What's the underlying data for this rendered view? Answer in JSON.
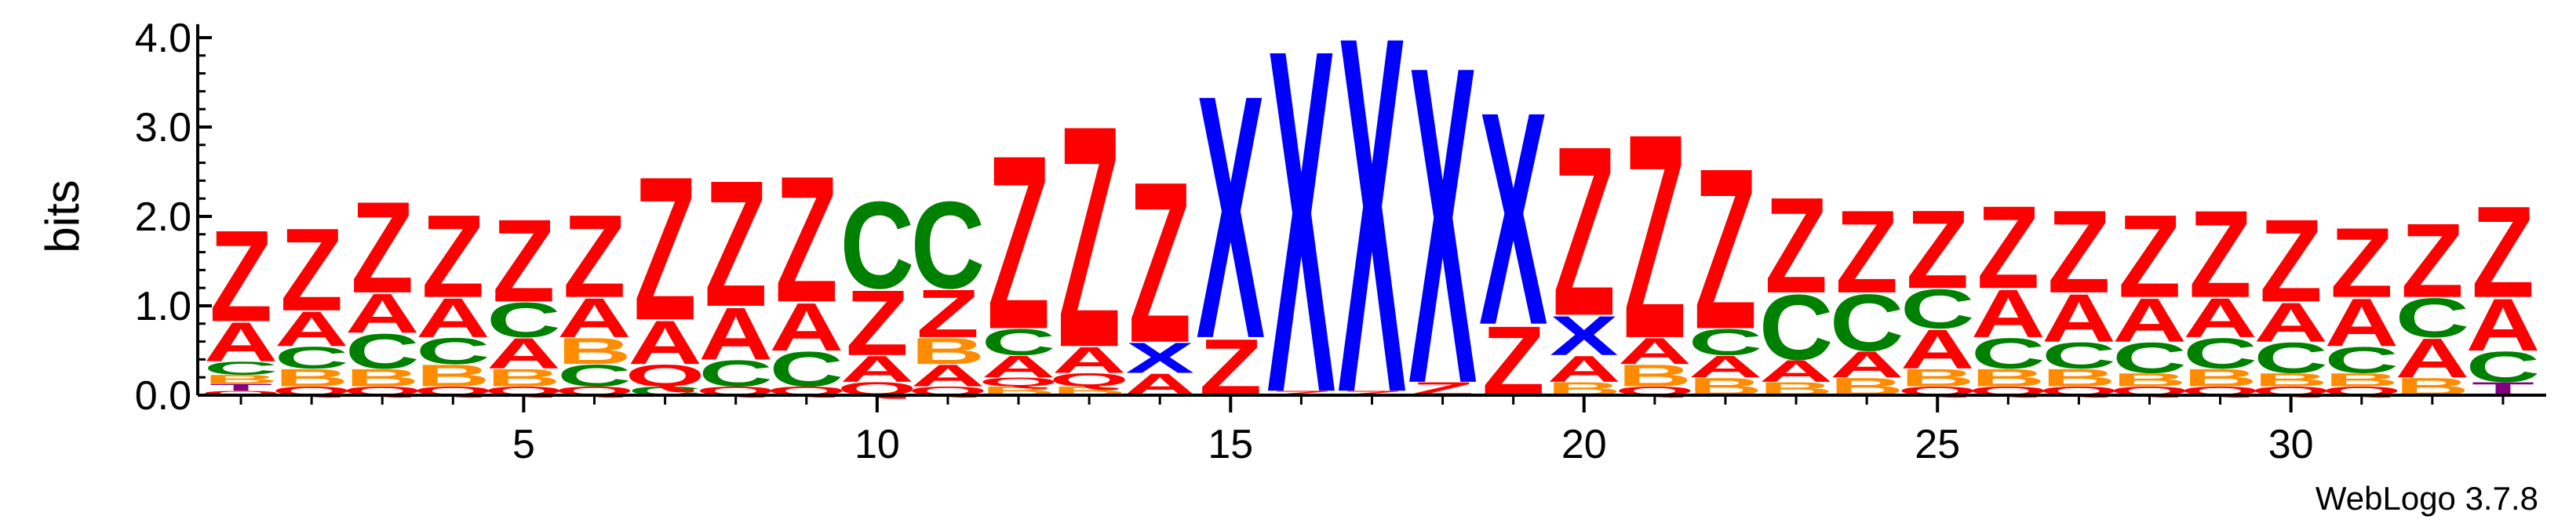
{
  "colors": {
    "A": "#ff0000",
    "Z": "#ff0000",
    "X": "#0000ff",
    "C": "#008000",
    "B": "#ff8c00",
    "Q": "#ff0000",
    "T": "#800080",
    "G": "#ff8c00",
    "axis": "#000000"
  },
  "chart_data": {
    "type": "sequence-logo",
    "title": "",
    "xlabel": "",
    "ylabel": "bits",
    "ylim": [
      0,
      4.0
    ],
    "xlim": [
      1,
      33
    ],
    "yticks": [
      0.0,
      1.0,
      2.0,
      3.0,
      4.0
    ],
    "ytick_labels": [
      "0.0",
      "1.0",
      "2.0",
      "3.0",
      "4.0"
    ],
    "xticks": [
      5,
      10,
      15,
      20,
      25,
      30
    ],
    "xtick_labels": [
      "5",
      "10",
      "15",
      "20",
      "25",
      "30"
    ],
    "credit": "WebLogo 3.7.8",
    "positions": [
      {
        "pos": 1,
        "stack": [
          [
            "Q",
            0.05
          ],
          [
            "T",
            0.08
          ],
          [
            "B",
            0.1
          ],
          [
            "C",
            0.15
          ],
          [
            "A",
            0.45
          ],
          [
            "Z",
            1.05
          ]
        ]
      },
      {
        "pos": 2,
        "stack": [
          [
            "Q",
            0.1
          ],
          [
            "B",
            0.2
          ],
          [
            "C",
            0.25
          ],
          [
            "A",
            0.4
          ],
          [
            "Z",
            0.95
          ]
        ]
      },
      {
        "pos": 3,
        "stack": [
          [
            "Q",
            0.1
          ],
          [
            "B",
            0.2
          ],
          [
            "C",
            0.4
          ],
          [
            "A",
            0.45
          ],
          [
            "Z",
            1.05
          ]
        ]
      },
      {
        "pos": 4,
        "stack": [
          [
            "Q",
            0.1
          ],
          [
            "B",
            0.25
          ],
          [
            "C",
            0.3
          ],
          [
            "A",
            0.45
          ],
          [
            "Z",
            0.95
          ]
        ]
      },
      {
        "pos": 5,
        "stack": [
          [
            "Q",
            0.1
          ],
          [
            "B",
            0.2
          ],
          [
            "A",
            0.35
          ],
          [
            "C",
            0.4
          ],
          [
            "Z",
            0.95
          ]
        ]
      },
      {
        "pos": 6,
        "stack": [
          [
            "Q",
            0.1
          ],
          [
            "C",
            0.25
          ],
          [
            "B",
            0.3
          ],
          [
            "A",
            0.45
          ],
          [
            "Z",
            0.95
          ]
        ]
      },
      {
        "pos": 7,
        "stack": [
          [
            "C",
            0.1
          ],
          [
            "Q",
            0.25
          ],
          [
            "A",
            0.5
          ],
          [
            "Z",
            1.65
          ]
        ]
      },
      {
        "pos": 8,
        "stack": [
          [
            "Q",
            0.1
          ],
          [
            "C",
            0.3
          ],
          [
            "A",
            0.6
          ],
          [
            "Z",
            1.45
          ]
        ]
      },
      {
        "pos": 9,
        "stack": [
          [
            "Q",
            0.1
          ],
          [
            "C",
            0.4
          ],
          [
            "A",
            0.55
          ],
          [
            "Z",
            1.45
          ]
        ]
      },
      {
        "pos": 10,
        "stack": [
          [
            "Q",
            0.15
          ],
          [
            "A",
            0.3
          ],
          [
            "Z",
            0.75
          ],
          [
            "C",
            1.0
          ]
        ]
      },
      {
        "pos": 11,
        "stack": [
          [
            "Q",
            0.1
          ],
          [
            "A",
            0.25
          ],
          [
            "B",
            0.3
          ],
          [
            "Z",
            0.55
          ],
          [
            "C",
            1.0
          ]
        ]
      },
      {
        "pos": 12,
        "stack": [
          [
            "B",
            0.1
          ],
          [
            "Q",
            0.1
          ],
          [
            "A",
            0.25
          ],
          [
            "C",
            0.3
          ],
          [
            "Z",
            2.0
          ]
        ]
      },
      {
        "pos": 13,
        "stack": [
          [
            "B",
            0.1
          ],
          [
            "Q",
            0.15
          ],
          [
            "A",
            0.3
          ],
          [
            "Z",
            2.55
          ]
        ]
      },
      {
        "pos": 14,
        "stack": [
          [
            "A",
            0.25
          ],
          [
            "X",
            0.35
          ],
          [
            "Z",
            1.85
          ]
        ]
      },
      {
        "pos": 15,
        "stack": [
          [
            "Z",
            0.65
          ],
          [
            "X",
            2.8
          ]
        ]
      },
      {
        "pos": 16,
        "stack": [
          [
            "Z",
            0.05
          ],
          [
            "X",
            3.95
          ]
        ]
      },
      {
        "pos": 17,
        "stack": [
          [
            "Z",
            0.05
          ],
          [
            "X",
            4.1
          ]
        ]
      },
      {
        "pos": 18,
        "stack": [
          [
            "Z",
            0.15
          ],
          [
            "X",
            3.65
          ]
        ]
      },
      {
        "pos": 19,
        "stack": [
          [
            "Z",
            0.8
          ],
          [
            "X",
            2.45
          ]
        ]
      },
      {
        "pos": 20,
        "stack": [
          [
            "B",
            0.15
          ],
          [
            "A",
            0.3
          ],
          [
            "X",
            0.45
          ],
          [
            "Z",
            1.95
          ]
        ]
      },
      {
        "pos": 21,
        "stack": [
          [
            "Q",
            0.1
          ],
          [
            "B",
            0.25
          ],
          [
            "A",
            0.3
          ],
          [
            "Z",
            2.35
          ]
        ]
      },
      {
        "pos": 22,
        "stack": [
          [
            "B",
            0.2
          ],
          [
            "A",
            0.25
          ],
          [
            "C",
            0.3
          ],
          [
            "Z",
            1.85
          ]
        ]
      },
      {
        "pos": 23,
        "stack": [
          [
            "B",
            0.15
          ],
          [
            "A",
            0.25
          ],
          [
            "C",
            0.75
          ],
          [
            "Z",
            1.1
          ]
        ]
      },
      {
        "pos": 24,
        "stack": [
          [
            "B",
            0.2
          ],
          [
            "A",
            0.3
          ],
          [
            "C",
            0.65
          ],
          [
            "Z",
            0.95
          ]
        ]
      },
      {
        "pos": 25,
        "stack": [
          [
            "Q",
            0.1
          ],
          [
            "B",
            0.2
          ],
          [
            "A",
            0.45
          ],
          [
            "C",
            0.45
          ],
          [
            "Z",
            0.9
          ]
        ]
      },
      {
        "pos": 26,
        "stack": [
          [
            "Q",
            0.1
          ],
          [
            "B",
            0.2
          ],
          [
            "C",
            0.35
          ],
          [
            "A",
            0.55
          ],
          [
            "Z",
            0.95
          ]
        ]
      },
      {
        "pos": 27,
        "stack": [
          [
            "Q",
            0.1
          ],
          [
            "B",
            0.2
          ],
          [
            "C",
            0.3
          ],
          [
            "A",
            0.55
          ],
          [
            "Z",
            0.95
          ]
        ]
      },
      {
        "pos": 28,
        "stack": [
          [
            "Q",
            0.1
          ],
          [
            "B",
            0.15
          ],
          [
            "C",
            0.35
          ],
          [
            "A",
            0.5
          ],
          [
            "Z",
            0.95
          ]
        ]
      },
      {
        "pos": 29,
        "stack": [
          [
            "Q",
            0.1
          ],
          [
            "B",
            0.2
          ],
          [
            "C",
            0.35
          ],
          [
            "A",
            0.45
          ],
          [
            "Z",
            1.0
          ]
        ]
      },
      {
        "pos": 30,
        "stack": [
          [
            "Q",
            0.1
          ],
          [
            "B",
            0.15
          ],
          [
            "C",
            0.35
          ],
          [
            "A",
            0.45
          ],
          [
            "Z",
            0.95
          ]
        ]
      },
      {
        "pos": 31,
        "stack": [
          [
            "Q",
            0.1
          ],
          [
            "B",
            0.15
          ],
          [
            "C",
            0.3
          ],
          [
            "A",
            0.55
          ],
          [
            "Z",
            0.8
          ]
        ]
      },
      {
        "pos": 32,
        "stack": [
          [
            "B",
            0.2
          ],
          [
            "A",
            0.45
          ],
          [
            "C",
            0.45
          ],
          [
            "Z",
            0.85
          ]
        ]
      },
      {
        "pos": 33,
        "stack": [
          [
            "T",
            0.15
          ],
          [
            "C",
            0.35
          ],
          [
            "A",
            0.6
          ],
          [
            "Z",
            1.05
          ]
        ]
      }
    ]
  }
}
